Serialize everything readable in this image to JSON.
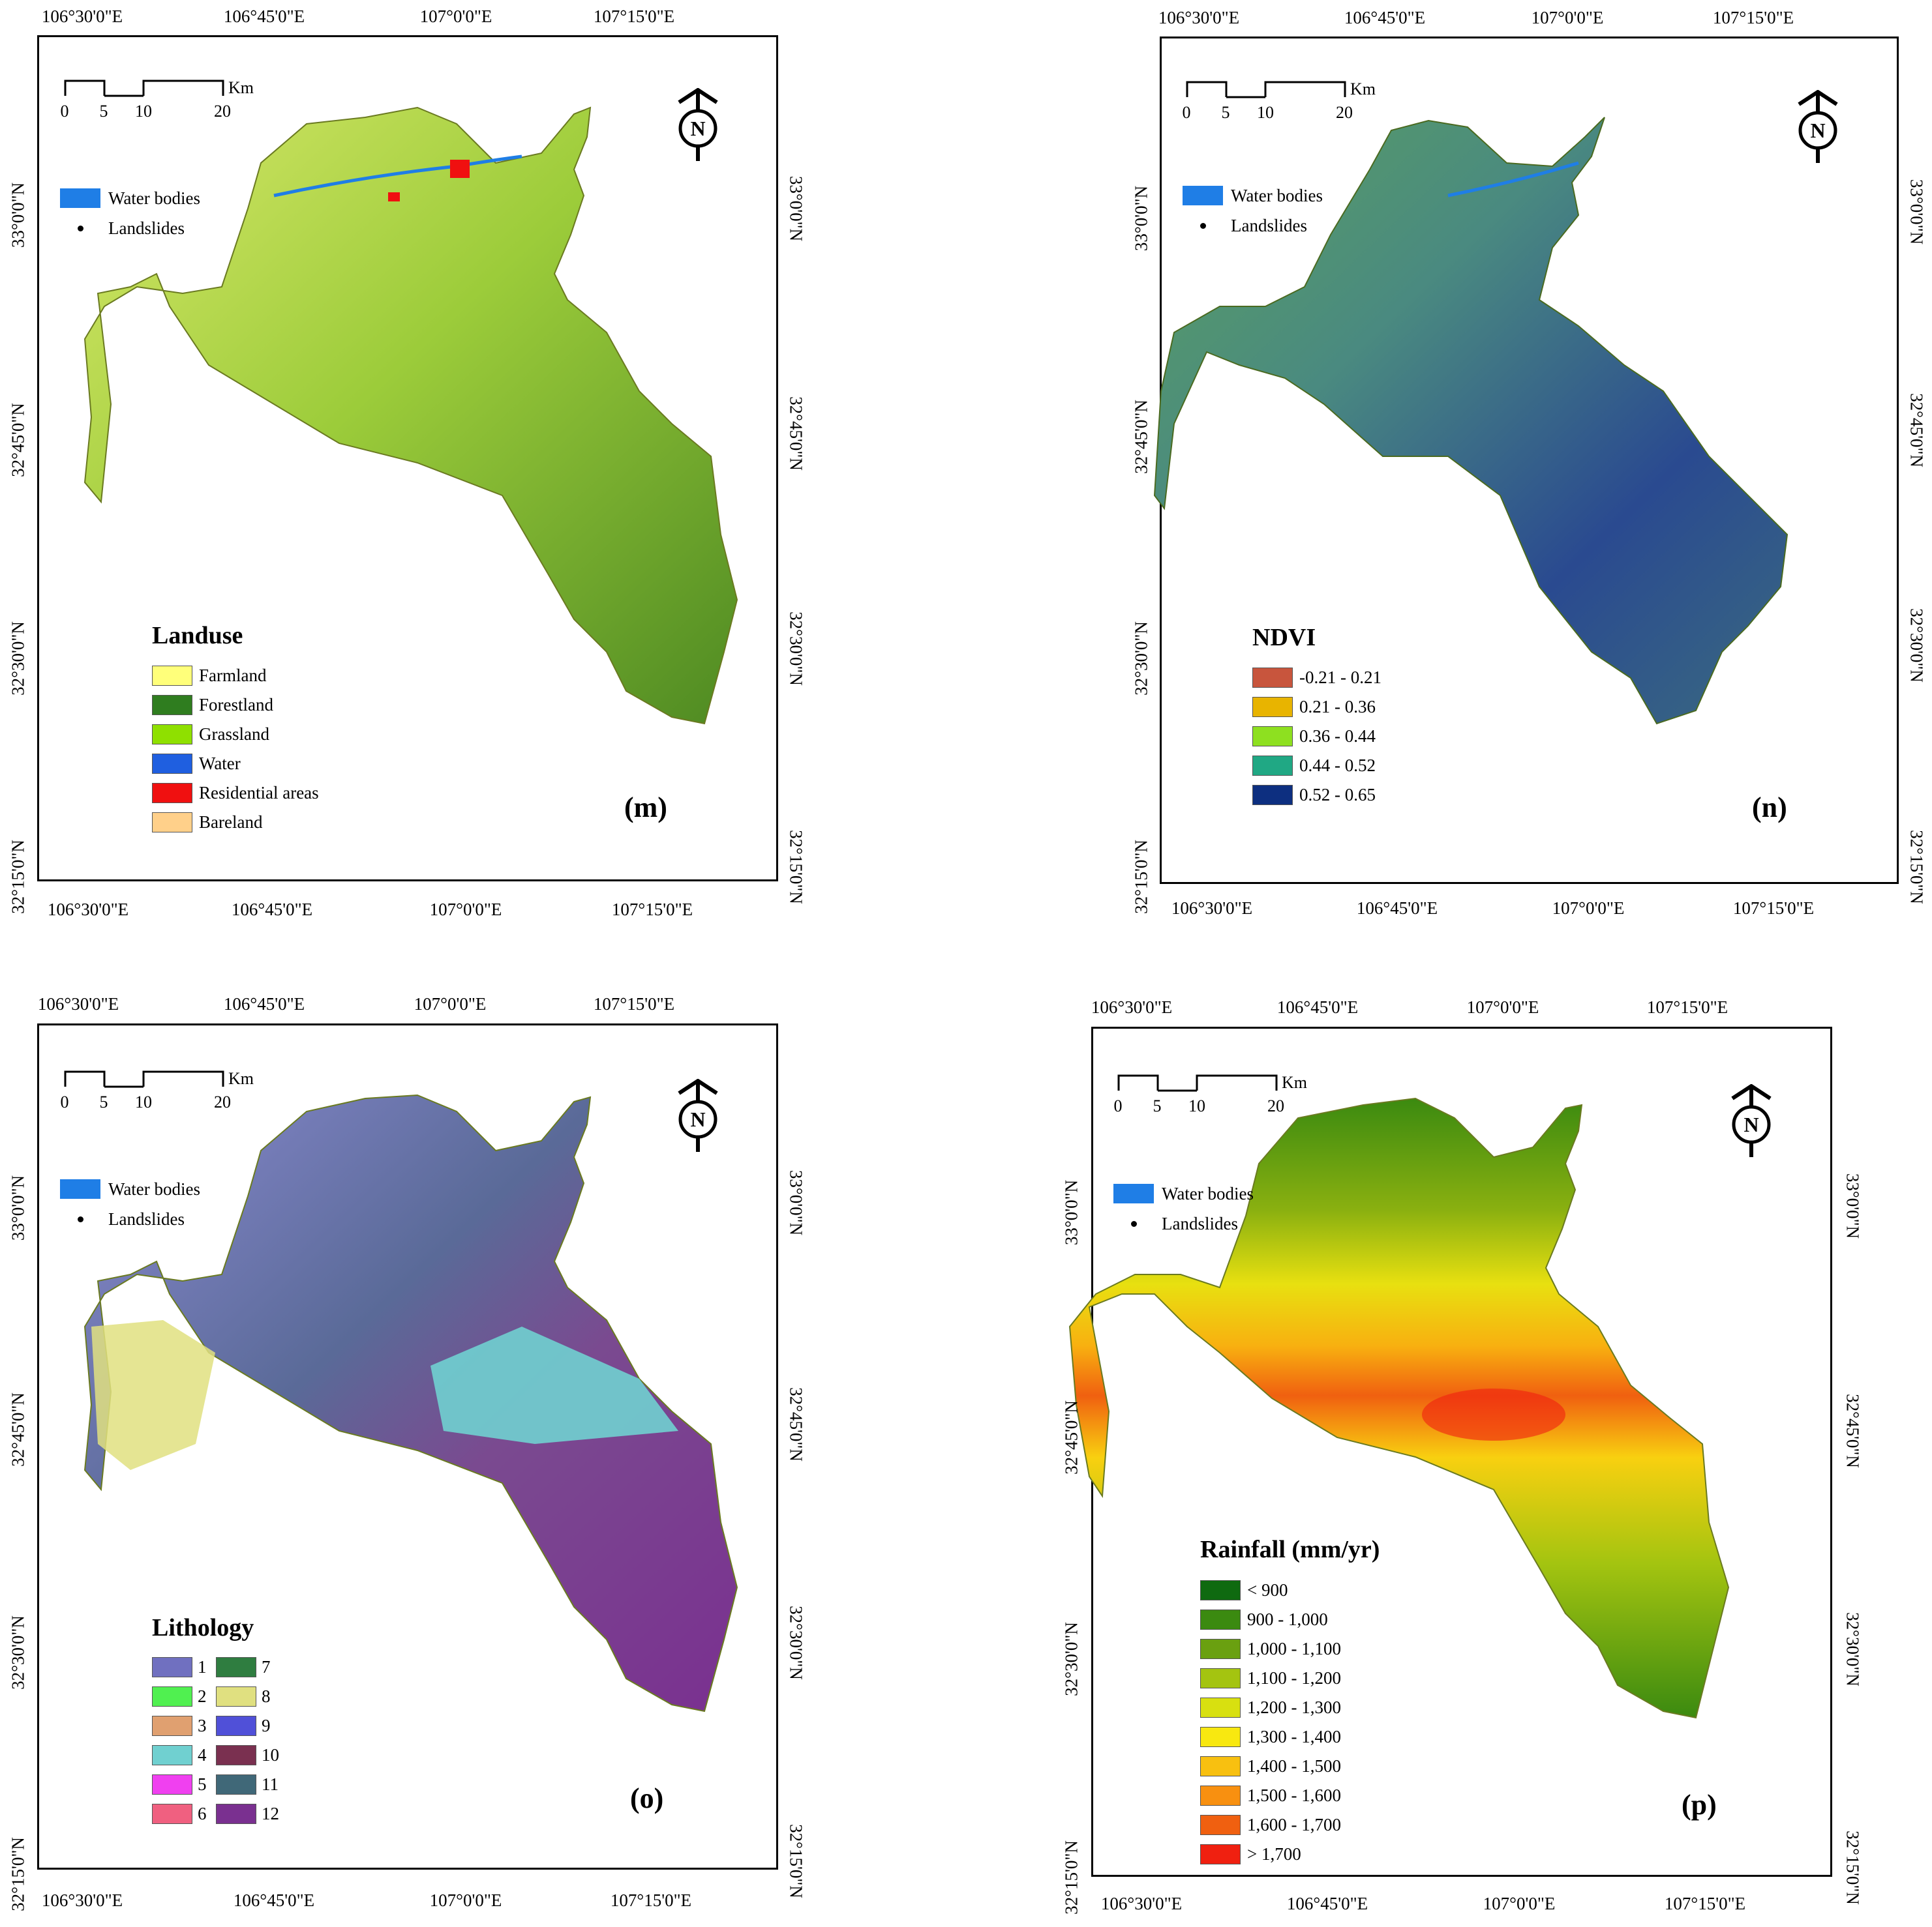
{
  "panels": {
    "m": {
      "label": "(m)",
      "lon_top": [
        "106°30'0\"E",
        "106°45'0\"E",
        "107°0'0\"E",
        "107°15'0\"E"
      ],
      "lon_bottom": [
        "106°30'0\"E",
        "106°45'0\"E",
        "107°0'0\"E",
        "107°15'0\"E"
      ],
      "lat_left": [
        "33°0'0\"N",
        "32°45'0\"N",
        "32°30'0\"N",
        "32°15'0\"N"
      ],
      "lat_right": [
        "33°0'0\"N",
        "32°45'0\"N",
        "32°30'0\"N",
        "32°15'0\"N"
      ],
      "scale": {
        "ticks": [
          "0",
          "5",
          "10",
          "20"
        ],
        "unit": "Km"
      },
      "north": "N",
      "water_label": "Water bodies",
      "landslides_label": "Landslides",
      "legend_title": "Landuse",
      "legend": [
        {
          "label": "Farmland",
          "color": "#ffff7a"
        },
        {
          "label": "Forestland",
          "color": "#2f7d1f"
        },
        {
          "label": "Grassland",
          "color": "#8fe000"
        },
        {
          "label": "Water",
          "color": "#1f5fe0"
        },
        {
          "label": "Residential areas",
          "color": "#f01010"
        },
        {
          "label": "Bareland",
          "color": "#ffd08a"
        }
      ]
    },
    "n": {
      "label": "(n)",
      "lon_top": [
        "106°30'0\"E",
        "106°45'0\"E",
        "107°0'0\"E",
        "107°15'0\"E"
      ],
      "lon_bottom": [
        "106°30'0\"E",
        "106°45'0\"E",
        "107°0'0\"E",
        "107°15'0\"E"
      ],
      "lat_left": [
        "33°0'0\"N",
        "32°45'0\"N",
        "32°30'0\"N",
        "32°15'0\"N"
      ],
      "lat_right": [
        "33°0'0\"N",
        "32°45'0\"N",
        "32°30'0\"N",
        "32°15'0\"N"
      ],
      "scale": {
        "ticks": [
          "0",
          "5",
          "10",
          "20"
        ],
        "unit": "Km"
      },
      "north": "N",
      "water_label": "Water bodies",
      "landslides_label": "Landslides",
      "legend_title": "NDVI",
      "legend": [
        {
          "label": "-0.21 - 0.21",
          "color": "#c8553d"
        },
        {
          "label": "0.21 - 0.36",
          "color": "#e8b400"
        },
        {
          "label": "0.36 - 0.44",
          "color": "#8ee020"
        },
        {
          "label": "0.44 - 0.52",
          "color": "#20a884"
        },
        {
          "label": "0.52 - 0.65",
          "color": "#0d2f80"
        }
      ]
    },
    "o": {
      "label": "(o)",
      "lon_top": [
        "106°30'0\"E",
        "106°45'0\"E",
        "107°0'0\"E",
        "107°15'0\"E"
      ],
      "lon_bottom": [
        "106°30'0\"E",
        "106°45'0\"E",
        "107°0'0\"E",
        "107°15'0\"E"
      ],
      "lat_left": [
        "33°0'0\"N",
        "32°45'0\"N",
        "32°30'0\"N",
        "32°15'0\"N"
      ],
      "lat_right": [
        "33°0'0\"N",
        "32°45'0\"N",
        "32°30'0\"N",
        "32°15'0\"N"
      ],
      "scale": {
        "ticks": [
          "0",
          "5",
          "10",
          "20"
        ],
        "unit": "Km"
      },
      "north": "N",
      "water_label": "Water bodies",
      "landslides_label": "Landslides",
      "legend_title": "Lithology",
      "legend": [
        {
          "label": "1",
          "color": "#7070c0"
        },
        {
          "label": "7",
          "color": "#2f7d40"
        },
        {
          "label": "2",
          "color": "#50f050"
        },
        {
          "label": "8",
          "color": "#e0e080"
        },
        {
          "label": "3",
          "color": "#e0a070"
        },
        {
          "label": "9",
          "color": "#5050d8"
        },
        {
          "label": "4",
          "color": "#70d0d0"
        },
        {
          "label": "10",
          "color": "#7a3050"
        },
        {
          "label": "5",
          "color": "#f040f0"
        },
        {
          "label": "11",
          "color": "#406878"
        },
        {
          "label": "6",
          "color": "#f06080"
        },
        {
          "label": "12",
          "color": "#7a3090"
        }
      ]
    },
    "p": {
      "label": "(p)",
      "lon_top": [
        "106°30'0\"E",
        "106°45'0\"E",
        "107°0'0\"E",
        "107°15'0\"E"
      ],
      "lon_bottom": [
        "106°30'0\"E",
        "106°45'0\"E",
        "107°0'0\"E",
        "107°15'0\"E"
      ],
      "lat_left": [
        "33°0'0\"N",
        "32°45'0\"N",
        "32°30'0\"N",
        "32°15'0\"N"
      ],
      "lat_right": [
        "33°0'0\"N",
        "32°45'0\"N",
        "32°30'0\"N",
        "32°15'0\"N"
      ],
      "scale": {
        "ticks": [
          "0",
          "5",
          "10",
          "20"
        ],
        "unit": "Km"
      },
      "north": "N",
      "water_label": "Water bodies",
      "landslides_label": "Landslides",
      "legend_title": "Rainfall (mm/yr)",
      "legend": [
        {
          "label": "< 900",
          "color": "#0f6a10"
        },
        {
          "label": "900 - 1,000",
          "color": "#3b8a10"
        },
        {
          "label": "1,000 - 1,100",
          "color": "#6aa010"
        },
        {
          "label": "1,100 - 1,200",
          "color": "#a4c410"
        },
        {
          "label": "1,200 - 1,300",
          "color": "#d8e010"
        },
        {
          "label": "1,300 - 1,400",
          "color": "#f8e810"
        },
        {
          "label": "1,400 - 1,500",
          "color": "#f8c010"
        },
        {
          "label": "1,500 - 1,600",
          "color": "#f89010"
        },
        {
          "label": "1,600 - 1,700",
          "color": "#f06010"
        },
        {
          "label": "> 1,700",
          "color": "#f02010"
        }
      ]
    }
  }
}
